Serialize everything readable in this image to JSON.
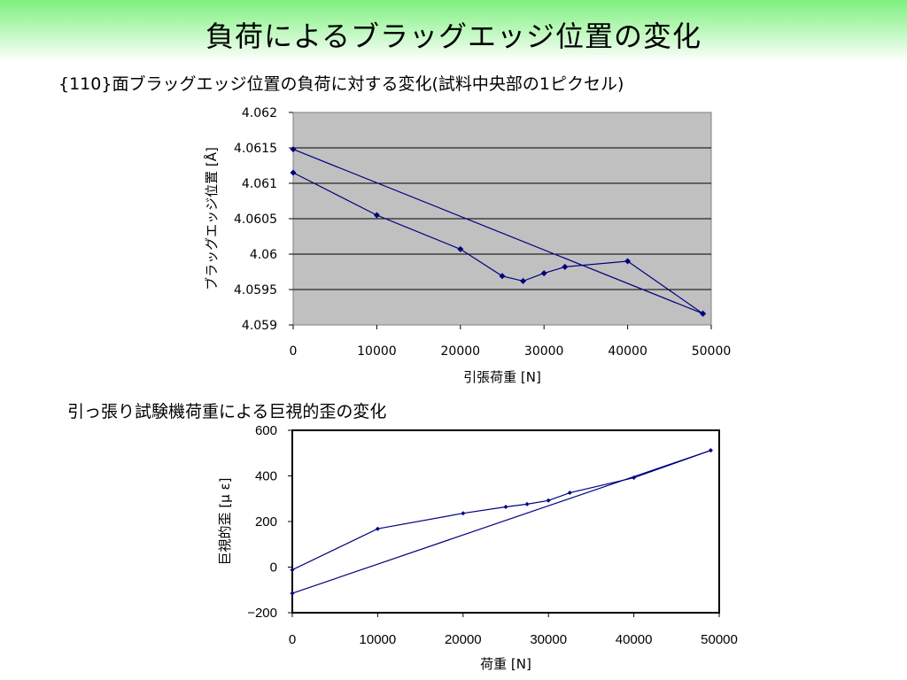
{
  "slide": {
    "title": "負荷によるブラッグエッジ位置の変化"
  },
  "headings": {
    "chart1": "{110}面ブラッグエッジ位置の負荷に対する変化(試料中央部の1ピクセル)",
    "chart2": "引っ張り試験機荷重による巨視的歪の変化"
  },
  "colors": {
    "banner": "#7ff07f",
    "plot_area_1": "#c0c0c0",
    "series": "#000080"
  },
  "chart_data": [
    {
      "type": "scatter",
      "title": "{110}面ブラッグエッジ位置の負荷に対する変化(試料中央部の1ピクセル)",
      "xlabel": "引張荷重 [N]",
      "ylabel": "ブラッグエッジ位置 [Å]",
      "xlim": [
        0,
        50000
      ],
      "ylim": [
        4.059,
        4.062
      ],
      "xticks": [
        "0",
        "10000",
        "20000",
        "30000",
        "40000",
        "50000"
      ],
      "yticks": [
        "4.062",
        "4.0615",
        "4.061",
        "4.0605",
        "4.06",
        "4.0595",
        "4.059"
      ],
      "grid": true,
      "series": [
        {
          "x": [
            0,
            10000,
            20000,
            25000,
            27500,
            30000,
            32500,
            40000,
            49000
          ],
          "y": [
            4.06115,
            4.06055,
            4.06007,
            4.05969,
            4.05962,
            4.05973,
            4.05982,
            4.0599,
            4.05916
          ],
          "markers": true
        },
        {
          "x": [
            0,
            49000
          ],
          "y": [
            4.06148,
            4.05916
          ],
          "markers": true
        }
      ]
    },
    {
      "type": "scatter",
      "title": "引っ張り試験機荷重による巨視的歪の変化",
      "xlabel": "荷重 [N]",
      "ylabel": "巨視的歪 [μ ε]",
      "xlim": [
        0,
        50000
      ],
      "ylim": [
        -200,
        600
      ],
      "xticks": [
        "0",
        "10000",
        "20000",
        "30000",
        "40000",
        "50000"
      ],
      "yticks": [
        "600",
        "400",
        "200",
        "0",
        "−200"
      ],
      "grid": false,
      "series": [
        {
          "x": [
            0,
            10000,
            20000,
            25000,
            27500,
            30000,
            32500,
            40000,
            49000
          ],
          "y": [
            -12,
            168,
            236,
            264,
            276,
            292,
            326,
            392,
            512
          ],
          "markers": true
        },
        {
          "x": [
            0,
            49000
          ],
          "y": [
            -115,
            512
          ],
          "markers": true
        }
      ]
    }
  ]
}
